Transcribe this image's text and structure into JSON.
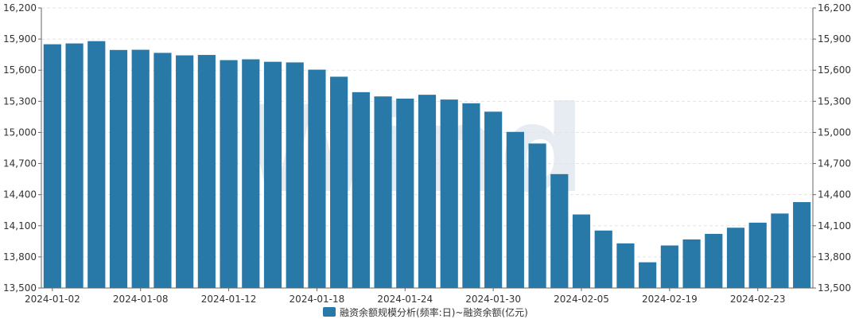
{
  "colors": {
    "bar": "#2878a8",
    "grid": "#e4e4e4",
    "axis": "#666666",
    "watermark": "#e6ecf1"
  },
  "watermark_text": "Wind",
  "chart_data": {
    "type": "bar",
    "categories": [
      "2024-01-02",
      "2024-01-03",
      "2024-01-04",
      "2024-01-05",
      "2024-01-08",
      "2024-01-09",
      "2024-01-10",
      "2024-01-11",
      "2024-01-12",
      "2024-01-15",
      "2024-01-16",
      "2024-01-17",
      "2024-01-18",
      "2024-01-19",
      "2024-01-22",
      "2024-01-23",
      "2024-01-24",
      "2024-01-25",
      "2024-01-26",
      "2024-01-29",
      "2024-01-30",
      "2024-01-31",
      "2024-02-01",
      "2024-02-02",
      "2024-02-05",
      "2024-02-06",
      "2024-02-07",
      "2024-02-08",
      "2024-02-19",
      "2024-02-20",
      "2024-02-21",
      "2024-02-22",
      "2024-02-23",
      "2024-02-26",
      "2024-02-27"
    ],
    "x_tick_labels": [
      {
        "index": 0,
        "label": "2024-01-02"
      },
      {
        "index": 4,
        "label": "2024-01-08"
      },
      {
        "index": 8,
        "label": "2024-01-12"
      },
      {
        "index": 12,
        "label": "2024-01-18"
      },
      {
        "index": 16,
        "label": "2024-01-24"
      },
      {
        "index": 20,
        "label": "2024-01-30"
      },
      {
        "index": 24,
        "label": "2024-02-05"
      },
      {
        "index": 28,
        "label": "2024-02-19"
      },
      {
        "index": 32,
        "label": "2024-02-23"
      }
    ],
    "series": [
      {
        "name": "融资余额规模分析(频率:日)~融资余额(亿元)",
        "values": [
          15850,
          15858,
          15880,
          15795,
          15797,
          15767,
          15743,
          15747,
          15697,
          15705,
          15681,
          15675,
          15605,
          15537,
          15388,
          15347,
          15326,
          15363,
          15317,
          15281,
          15200,
          15005,
          14893,
          14598,
          14209,
          14054,
          13930,
          13748,
          13910,
          13968,
          14022,
          14081,
          14130,
          14218,
          14328
        ]
      }
    ],
    "ylim": [
      13500,
      16200
    ],
    "y_ticks": [
      "13,500",
      "13,800",
      "14,100",
      "14,400",
      "14,700",
      "15,000",
      "15,300",
      "15,600",
      "15,900",
      "16,200"
    ],
    "y_tick_values": [
      13500,
      13800,
      14100,
      14400,
      14700,
      15000,
      15300,
      15600,
      15900,
      16200
    ],
    "grid": true,
    "legend_position": "bottom-center",
    "dual_y_axis": true
  }
}
